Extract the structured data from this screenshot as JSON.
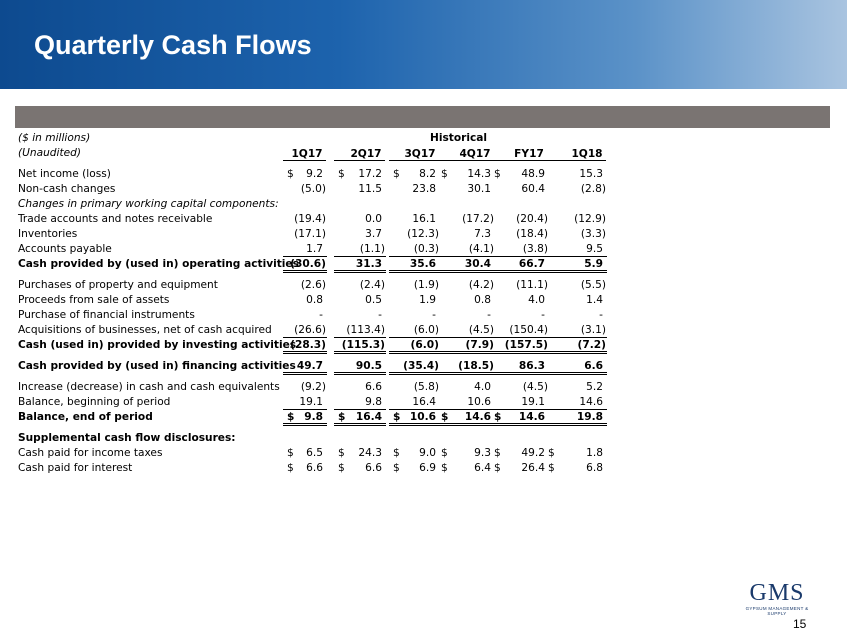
{
  "slide": {
    "title": "Quarterly Cash Flows",
    "page_number": "15"
  },
  "logo": {
    "name": "GMS",
    "tagline": "GYPSUM MANAGEMENT & SUPPLY"
  },
  "table": {
    "units_label": "($ in millions)",
    "unaudited_label": "(Unaudited)",
    "group_header": "Historical",
    "columns": [
      "1Q17",
      "2Q17",
      "3Q17",
      "4Q17",
      "FY17",
      "1Q18"
    ],
    "rows": [
      {
        "type": "spacer"
      },
      {
        "label": "Net income (loss)",
        "values": [
          "9.2",
          "17.2",
          "8.2",
          "14.3",
          "48.9",
          "15.3"
        ],
        "dollar": [
          true,
          true,
          true,
          true,
          true,
          false
        ]
      },
      {
        "label": "Non-cash changes",
        "values": [
          "(5.0)",
          "11.5",
          "23.8",
          "30.1",
          "60.4",
          "(2.8)"
        ]
      },
      {
        "label": "Changes in primary working capital components:",
        "italic": true,
        "values": []
      },
      {
        "label": "Trade accounts and notes receivable",
        "values": [
          "(19.4)",
          "0.0",
          "16.1",
          "(17.2)",
          "(20.4)",
          "(12.9)"
        ]
      },
      {
        "label": "Inventories",
        "values": [
          "(17.1)",
          "3.7",
          "(12.3)",
          "7.3",
          "(18.4)",
          "(3.3)"
        ]
      },
      {
        "label": "Accounts payable",
        "values": [
          "1.7",
          "(1.1)",
          "(0.3)",
          "(4.1)",
          "(3.8)",
          "9.5"
        ],
        "underline": true
      },
      {
        "label": "Cash provided by (used in) operating activities",
        "bold": true,
        "values": [
          "(30.6)",
          "31.3",
          "35.6",
          "30.4",
          "66.7",
          "5.9"
        ],
        "dline": true
      },
      {
        "type": "spacer"
      },
      {
        "label": "Purchases of property and equipment",
        "values": [
          "(2.6)",
          "(2.4)",
          "(1.9)",
          "(4.2)",
          "(11.1)",
          "(5.5)"
        ]
      },
      {
        "label": "Proceeds from sale of assets",
        "values": [
          "0.8",
          "0.5",
          "1.9",
          "0.8",
          "4.0",
          "1.4"
        ]
      },
      {
        "label": "Purchase of financial instruments",
        "values": [
          "-",
          "-",
          "-",
          "-",
          "-",
          "-"
        ]
      },
      {
        "label": "Acquisitions of businesses, net of cash acquired",
        "values": [
          "(26.6)",
          "(113.4)",
          "(6.0)",
          "(4.5)",
          "(150.4)",
          "(3.1)"
        ],
        "underline": true
      },
      {
        "label": "Cash (used in) provided by investing activities",
        "bold": true,
        "values": [
          "(28.3)",
          "(115.3)",
          "(6.0)",
          "(7.9)",
          "(157.5)",
          "(7.2)"
        ],
        "dline": true
      },
      {
        "type": "spacer"
      },
      {
        "label": "Cash provided by (used in) financing activities",
        "bold": true,
        "values": [
          "49.7",
          "90.5",
          "(35.4)",
          "(18.5)",
          "86.3",
          "6.6"
        ],
        "dline": true
      },
      {
        "type": "spacer"
      },
      {
        "label": "Increase (decrease) in cash and cash equivalents",
        "values": [
          "(9.2)",
          "6.6",
          "(5.8)",
          "4.0",
          "(4.5)",
          "5.2"
        ]
      },
      {
        "label": "Balance, beginning of period",
        "values": [
          "19.1",
          "9.8",
          "16.4",
          "10.6",
          "19.1",
          "14.6"
        ],
        "underline": true
      },
      {
        "label": "Balance, end of period",
        "bold": true,
        "values": [
          "9.8",
          "16.4",
          "10.6",
          "14.6",
          "14.6",
          "19.8"
        ],
        "dollar": [
          true,
          true,
          true,
          true,
          true,
          false
        ],
        "dline": true
      },
      {
        "type": "spacer"
      },
      {
        "label": "Supplemental cash flow disclosures:",
        "bold": true,
        "values": []
      },
      {
        "label": "Cash paid for income taxes",
        "values": [
          "6.5",
          "24.3",
          "9.0",
          "9.3",
          "49.2",
          "1.8"
        ],
        "dollar": [
          true,
          true,
          true,
          true,
          true,
          true
        ]
      },
      {
        "label": "Cash paid for interest",
        "values": [
          "6.6",
          "6.6",
          "6.9",
          "6.4",
          "26.4",
          "6.8"
        ],
        "dollar": [
          true,
          true,
          true,
          true,
          true,
          true
        ]
      }
    ]
  }
}
